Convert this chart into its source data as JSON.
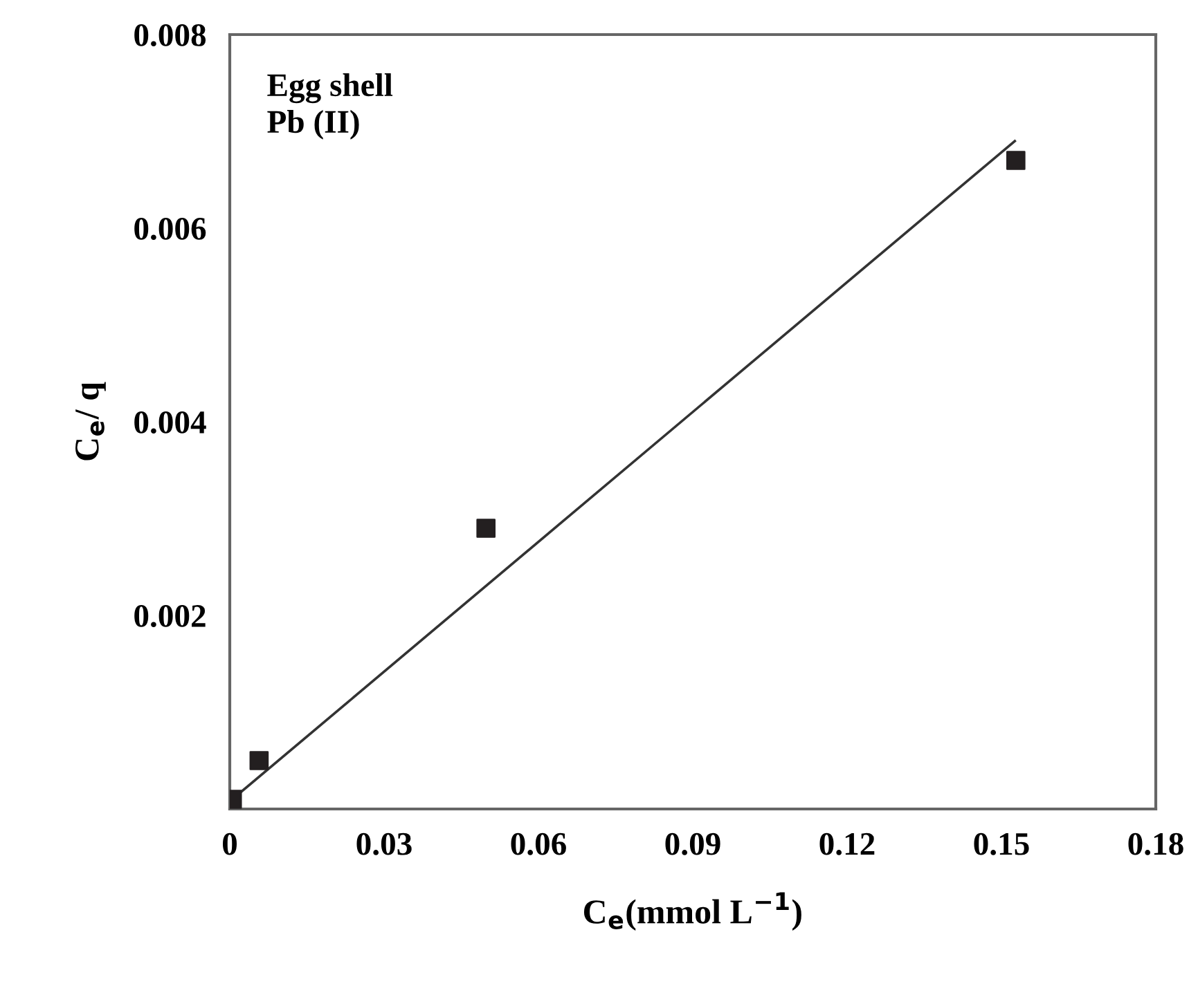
{
  "chart_data": {
    "type": "scatter",
    "xlabel": "C$_{e}$(mmol L$^{−1}$)",
    "ylabel": "C$_{e}$/ q",
    "annotations": [
      "Egg shell\nPb (II)"
    ],
    "series": [
      {
        "color": "#231f20",
        "marker": "square",
        "x": [
          0.0005,
          0.0057,
          0.0498,
          0.1528
        ],
        "values": [
          0.0001,
          0.0005,
          0.0029,
          0.0067
        ]
      },
      {
        "type": "line",
        "color": "#333333",
        "marker": "none",
        "x": [
          0.0005,
          0.1526
        ],
        "values": [
          0.0001,
          0.0069
        ]
      }
    ],
    "xlim": [
      0,
      0.18
    ],
    "ylim": [
      0,
      0.008
    ],
    "xticks": [
      0,
      0.03,
      0.06,
      0.09,
      0.12,
      0.15,
      0.18
    ],
    "yticks": [
      {
        "value": 0,
        "label": null
      },
      {
        "value": 0.002,
        "label": "0.002"
      },
      {
        "value": 0.004,
        "label": "0.004"
      },
      {
        "value": 0.006,
        "label": "0.006"
      },
      {
        "value": 0.008,
        "label": "0.008"
      }
    ],
    "grid": false,
    "legend": false
  }
}
